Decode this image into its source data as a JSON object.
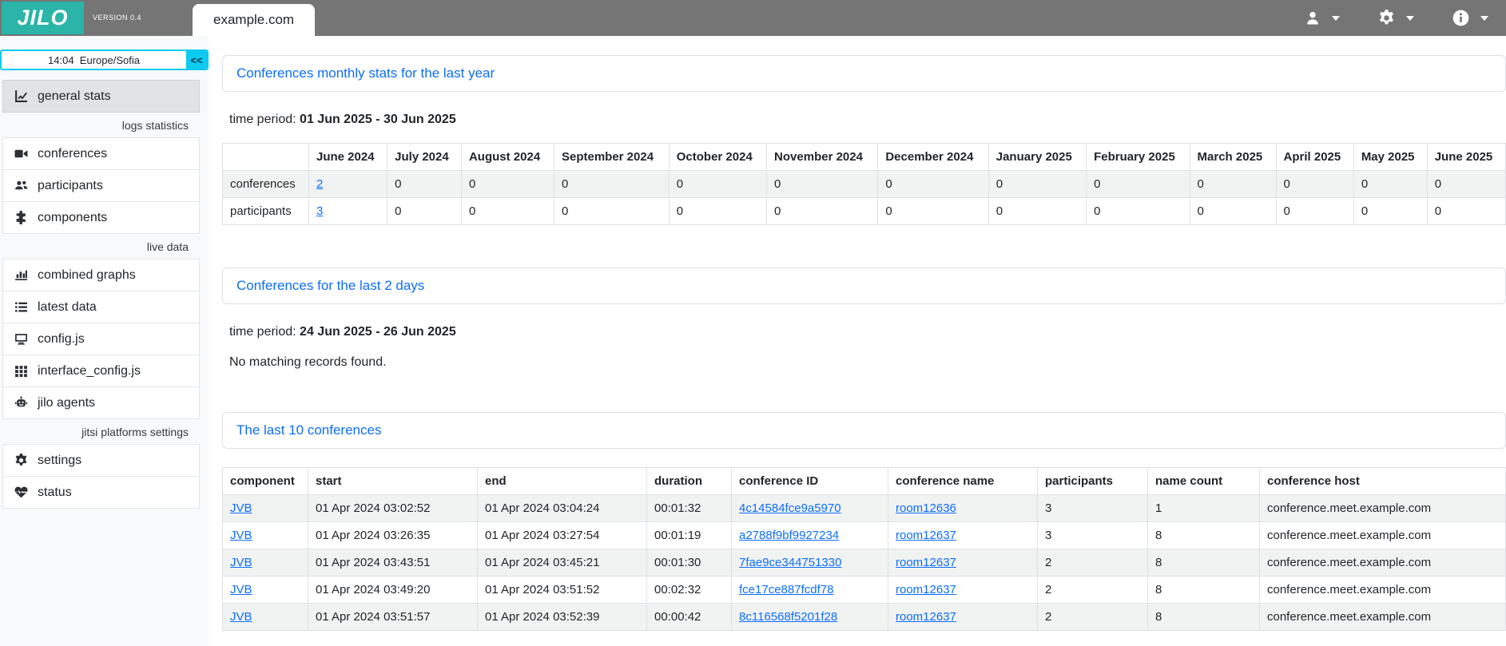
{
  "colors": {
    "header_bg": "#757575",
    "brand_teal": "#2ab5a8",
    "accent_cyan": "#0dcaf0",
    "link_blue": "#0d6efd",
    "stripe": "#f1f2f2",
    "border": "#dee2e6"
  },
  "header": {
    "logo_text": "JILO",
    "version": "VERSION 0.4",
    "tab_label": "example.com",
    "menus": [
      {
        "icon": "user-icon"
      },
      {
        "icon": "gear-icon"
      },
      {
        "icon": "info-icon"
      }
    ]
  },
  "sidebar": {
    "clock": {
      "time": "14:04",
      "timezone": "Europe/Sofia",
      "collapse_label": "<<"
    },
    "items": [
      {
        "type": "item",
        "icon": "chart-line-icon",
        "label": "general stats",
        "active": true
      },
      {
        "type": "section",
        "label": "logs statistics"
      },
      {
        "type": "item",
        "icon": "video-icon",
        "label": "conferences"
      },
      {
        "type": "item",
        "icon": "users-icon",
        "label": "participants"
      },
      {
        "type": "item",
        "icon": "puzzle-icon",
        "label": "components"
      },
      {
        "type": "section",
        "label": "live data"
      },
      {
        "type": "item",
        "icon": "bar-chart-icon",
        "label": "combined graphs"
      },
      {
        "type": "item",
        "icon": "list-icon",
        "label": "latest data"
      },
      {
        "type": "item",
        "icon": "desktop-icon",
        "label": "config.js"
      },
      {
        "type": "item",
        "icon": "grid-icon",
        "label": "interface_config.js"
      },
      {
        "type": "item",
        "icon": "robot-icon",
        "label": "jilo agents"
      },
      {
        "type": "section",
        "label": "jitsi platforms settings"
      },
      {
        "type": "item",
        "icon": "gear-icon",
        "label": "settings"
      },
      {
        "type": "item",
        "icon": "heart-pulse-icon",
        "label": "status"
      }
    ]
  },
  "monthly_card": {
    "title": "Conferences monthly stats for the last year",
    "time_period_label": "time period:",
    "time_period": "01 Jun 2025 - 30 Jun 2025",
    "table": {
      "columns": [
        "",
        "June 2024",
        "July 2024",
        "August 2024",
        "September 2024",
        "October 2024",
        "November 2024",
        "December 2024",
        "January 2025",
        "February 2025",
        "March 2025",
        "April 2025",
        "May 2025",
        "June 2025"
      ],
      "rows": [
        {
          "label": "conferences",
          "values": [
            "2",
            "0",
            "0",
            "0",
            "0",
            "0",
            "0",
            "0",
            "0",
            "0",
            "0",
            "0",
            "0"
          ],
          "first_value_is_link": true
        },
        {
          "label": "participants",
          "values": [
            "3",
            "0",
            "0",
            "0",
            "0",
            "0",
            "0",
            "0",
            "0",
            "0",
            "0",
            "0",
            "0"
          ],
          "first_value_is_link": true
        }
      ]
    }
  },
  "last2days_card": {
    "title": "Conferences for the last 2 days",
    "time_period_label": "time period:",
    "time_period": "24 Jun 2025 - 26 Jun 2025",
    "empty_message": "No matching records found."
  },
  "last10_card": {
    "title": "The last 10 conferences",
    "table": {
      "columns": [
        "component",
        "start",
        "end",
        "duration",
        "conference ID",
        "conference name",
        "participants",
        "name count",
        "conference host"
      ],
      "link_columns": [
        0,
        4,
        5
      ],
      "rows": [
        [
          "JVB",
          "01 Apr 2024 03:02:52",
          "01 Apr 2024 03:04:24",
          "00:01:32",
          "4c14584fce9a5970",
          "room12636",
          "3",
          "1",
          "conference.meet.example.com"
        ],
        [
          "JVB",
          "01 Apr 2024 03:26:35",
          "01 Apr 2024 03:27:54",
          "00:01:19",
          "a2788f9bf9927234",
          "room12637",
          "3",
          "8",
          "conference.meet.example.com"
        ],
        [
          "JVB",
          "01 Apr 2024 03:43:51",
          "01 Apr 2024 03:45:21",
          "00:01:30",
          "7fae9ce344751330",
          "room12637",
          "2",
          "8",
          "conference.meet.example.com"
        ],
        [
          "JVB",
          "01 Apr 2024 03:49:20",
          "01 Apr 2024 03:51:52",
          "00:02:32",
          "fce17ce887fcdf78",
          "room12637",
          "2",
          "8",
          "conference.meet.example.com"
        ],
        [
          "JVB",
          "01 Apr 2024 03:51:57",
          "01 Apr 2024 03:52:39",
          "00:00:42",
          "8c116568f5201f28",
          "room12637",
          "2",
          "8",
          "conference.meet.example.com"
        ]
      ]
    }
  }
}
